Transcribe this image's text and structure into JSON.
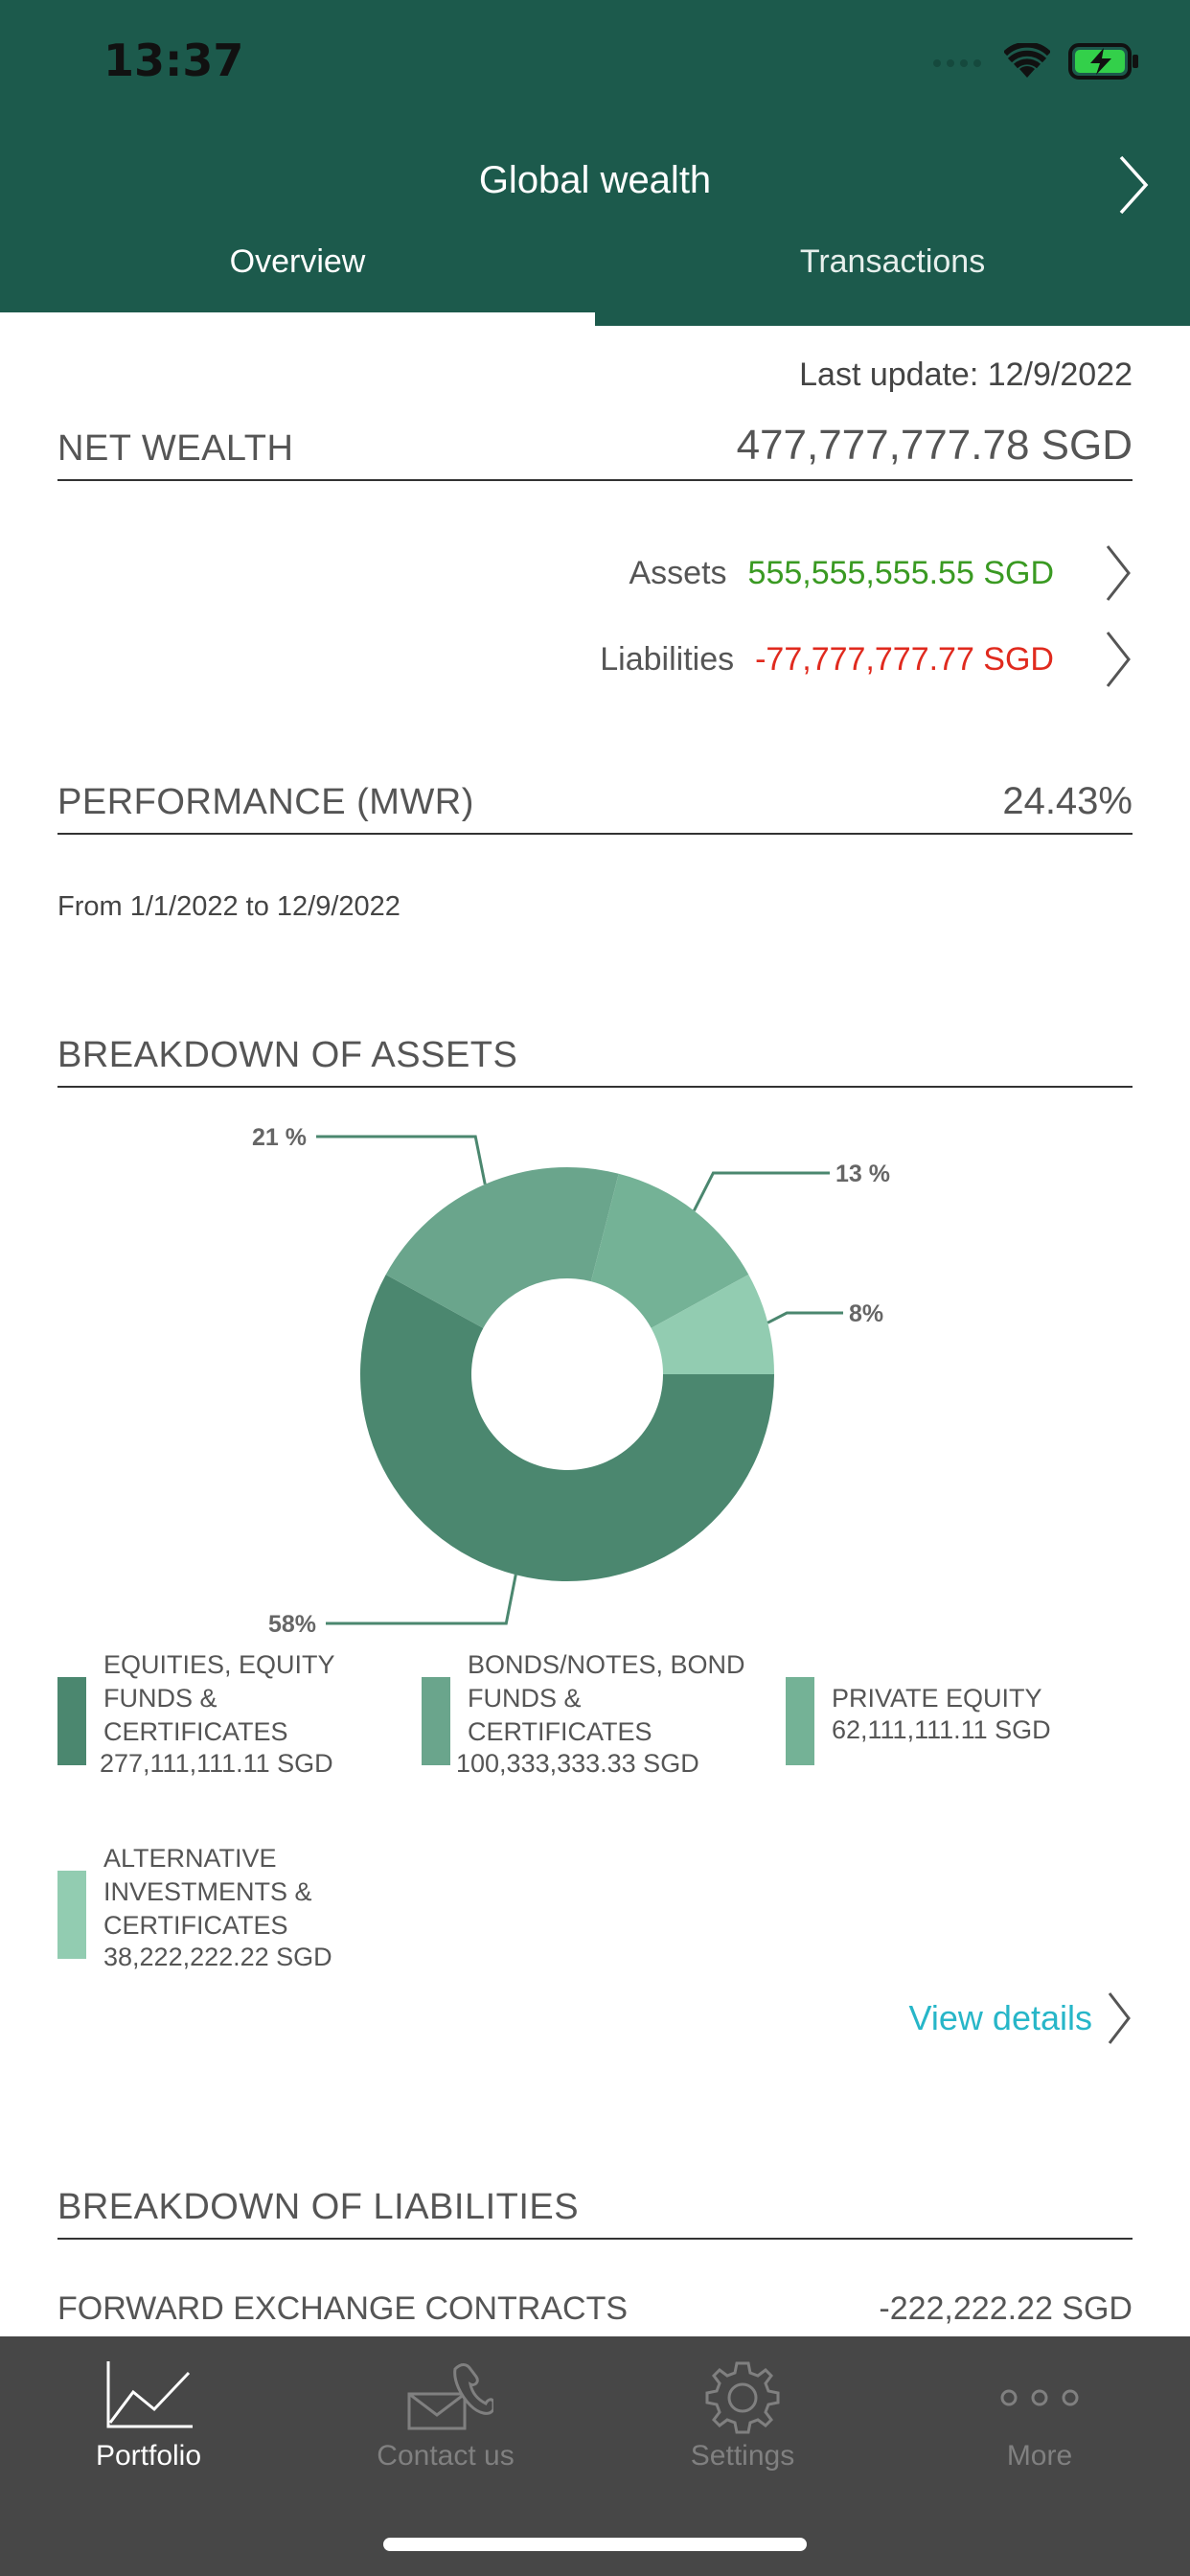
{
  "status_bar": {
    "time": "13:37"
  },
  "header": {
    "title": "Global wealth"
  },
  "tabs": [
    {
      "label": "Overview",
      "active": true
    },
    {
      "label": "Transactions",
      "active": false
    }
  ],
  "last_update": "Last update: 12/9/2022",
  "net_wealth": {
    "label": "NET WEALTH",
    "value": "477,777,777.78 SGD"
  },
  "assets": {
    "label": "Assets",
    "value": "555,555,555.55 SGD",
    "color": "#3a9a22"
  },
  "liabilities": {
    "label": "Liabilities",
    "value": "-77,777,777.77 SGD",
    "color": "#e02a1e"
  },
  "performance": {
    "label": "PERFORMANCE (MWR)",
    "value": "24.43%",
    "period": "From 1/1/2022 to 12/9/2022"
  },
  "breakdown_assets": {
    "title": "BREAKDOWN OF ASSETS",
    "legend": [
      {
        "line1": "EQUITIES, EQUITY",
        "line2": "FUNDS &",
        "line3": "CERTIFICATES",
        "value": "277,111,111.11 SGD",
        "color": "#4b876f"
      },
      {
        "line1": "BONDS/NOTES, BOND",
        "line2": "FUNDS &",
        "line3": "CERTIFICATES",
        "value": "100,333,333.33 SGD",
        "color": "#6aa58c"
      },
      {
        "line1": "PRIVATE EQUITY",
        "line2": "",
        "line3": "",
        "value": "62,111,111.11 SGD",
        "color": "#74b296"
      },
      {
        "line1": "ALTERNATIVE",
        "line2": "INVESTMENTS &",
        "line3": "CERTIFICATES",
        "value": "38,222,222.22 SGD",
        "color": "#92ccb1"
      }
    ],
    "view_details": "View details"
  },
  "chart_data": {
    "type": "pie",
    "donut": true,
    "categories": [
      "EQUITIES, EQUITY FUNDS & CERTIFICATES",
      "BONDS/NOTES, BOND FUNDS & CERTIFICATES",
      "PRIVATE EQUITY",
      "ALTERNATIVE INVESTMENTS & CERTIFICATES"
    ],
    "values": [
      58,
      21,
      13,
      8
    ],
    "labels": [
      "58%",
      "21 %",
      "13 %",
      "8%"
    ],
    "colors": [
      "#4b876f",
      "#6aa58c",
      "#74b296",
      "#92ccb1"
    ]
  },
  "breakdown_liabilities": {
    "title": "BREAKDOWN OF LIABILITIES",
    "rows": [
      {
        "label": "FORWARD EXCHANGE CONTRACTS",
        "value": "-222,222.22 SGD"
      }
    ]
  },
  "tabbar": [
    {
      "label": "Portfolio",
      "icon": "chart-line-icon",
      "active": true
    },
    {
      "label": "Contact us",
      "icon": "envelope-phone-icon",
      "active": false
    },
    {
      "label": "Settings",
      "icon": "gear-icon",
      "active": false
    },
    {
      "label": "More",
      "icon": "more-dots-icon",
      "active": false
    }
  ]
}
